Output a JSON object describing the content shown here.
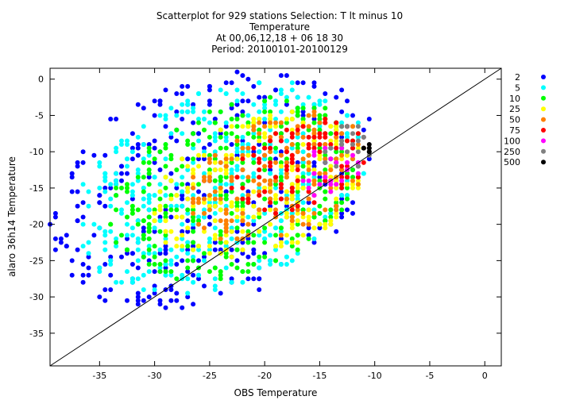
{
  "chart_data": {
    "type": "scatter",
    "title_lines": [
      "Scatterplot for  929 stations Selection: T lt minus 10",
      "Temperature",
      "At 00,06,12,18 + 06 18 30",
      "Period: 20100101-20100129"
    ],
    "xlabel": "OBS Temperature",
    "ylabel": "alaro 36h14 Temperature",
    "xlim": [
      -39.5,
      1.5
    ],
    "ylim": [
      -39.5,
      1.5
    ],
    "xticks": [
      -35,
      -30,
      -25,
      -20,
      -15,
      -10,
      -5,
      0
    ],
    "yticks": [
      0,
      -5,
      -10,
      -15,
      -20,
      -25,
      -30,
      -35
    ],
    "diagonal": "y = x",
    "grid": false,
    "legend_position": "right",
    "legend": [
      {
        "label": "2",
        "color": "#0000ff"
      },
      {
        "label": "5",
        "color": "#00ffff"
      },
      {
        "label": "10",
        "color": "#00ff00"
      },
      {
        "label": "25",
        "color": "#ffff00"
      },
      {
        "label": "50",
        "color": "#ff7f00"
      },
      {
        "label": "75",
        "color": "#ff0000"
      },
      {
        "label": "100",
        "color": "#ff00ff"
      },
      {
        "label": "250",
        "color": "#808080"
      },
      {
        "label": "500",
        "color": "#000000"
      }
    ],
    "density_regions": [
      {
        "class": "2",
        "x": [
          -39.5,
          -10
        ],
        "y": [
          -31,
          1
        ]
      },
      {
        "class": "5",
        "x": [
          -37.5,
          -10.5
        ],
        "y": [
          -29,
          -1
        ]
      },
      {
        "class": "10",
        "x": [
          -34,
          -11
        ],
        "y": [
          -27,
          -3
        ]
      },
      {
        "class": "25",
        "x": [
          -30,
          -11
        ],
        "y": [
          -25,
          -5
        ]
      },
      {
        "class": "50",
        "x": [
          -27,
          -10.5
        ],
        "y": [
          -22,
          -5
        ]
      },
      {
        "class": "75",
        "x": [
          -23,
          -10.5
        ],
        "y": [
          -18,
          -6
        ]
      },
      {
        "class": "100",
        "x": [
          -17,
          -11
        ],
        "y": [
          -16,
          -9
        ]
      },
      {
        "class": "250",
        "x": [
          -14.5,
          -10
        ],
        "y": [
          -13,
          -6
        ]
      },
      {
        "class": "500",
        "x": [
          -11,
          -10.5
        ],
        "y": [
          -10,
          -9
        ]
      }
    ]
  }
}
